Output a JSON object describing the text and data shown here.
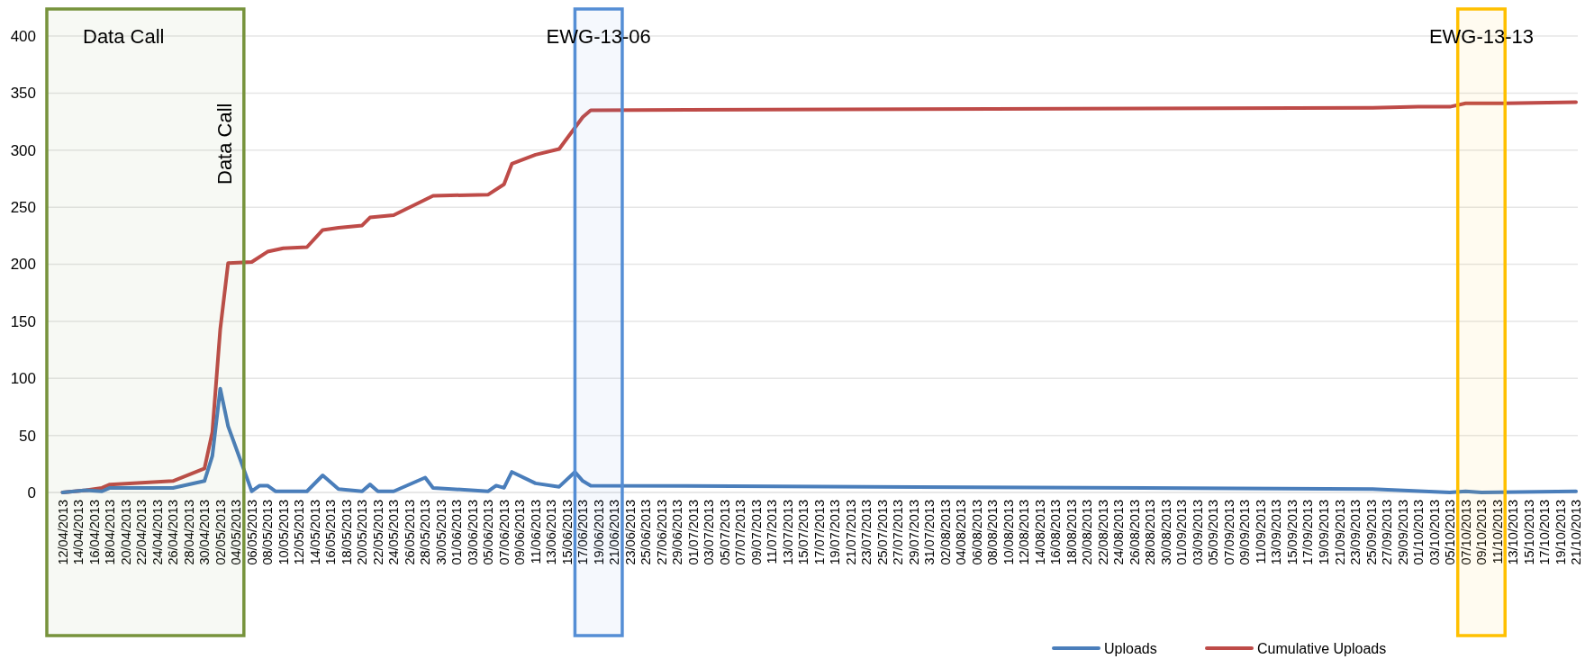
{
  "chart_data": {
    "type": "line",
    "series": [
      {
        "name": "Uploads",
        "color": "#4a7ebb",
        "x": [
          "2013-04-12",
          "2013-04-15",
          "2013-04-17",
          "2013-04-18",
          "2013-04-26",
          "2013-04-30",
          "2013-05-01",
          "2013-05-02",
          "2013-05-03",
          "2013-05-06",
          "2013-05-07",
          "2013-05-08",
          "2013-05-09",
          "2013-05-13",
          "2013-05-15",
          "2013-05-17",
          "2013-05-20",
          "2013-05-21",
          "2013-05-22",
          "2013-05-24",
          "2013-05-28",
          "2013-05-29",
          "2013-06-05",
          "2013-06-06",
          "2013-06-07",
          "2013-06-08",
          "2013-06-11",
          "2013-06-14",
          "2013-06-16",
          "2013-06-17",
          "2013-06-18",
          "2013-09-25",
          "2013-10-05",
          "2013-10-07",
          "2013-10-09",
          "2013-10-21"
        ],
        "values": [
          0,
          2,
          1,
          4,
          4,
          10,
          32,
          91,
          58,
          1,
          6,
          6,
          1,
          1,
          15,
          3,
          1,
          7,
          1,
          1,
          13,
          4,
          1,
          6,
          4,
          18,
          8,
          5,
          18,
          10,
          6,
          3,
          0,
          1,
          0,
          1
        ]
      },
      {
        "name": "Cumulative Uploads",
        "color": "#be4b48",
        "x": [
          "2013-04-12",
          "2013-04-15",
          "2013-04-17",
          "2013-04-18",
          "2013-04-26",
          "2013-04-30",
          "2013-05-01",
          "2013-05-02",
          "2013-05-03",
          "2013-05-06",
          "2013-05-08",
          "2013-05-10",
          "2013-05-13",
          "2013-05-15",
          "2013-05-17",
          "2013-05-20",
          "2013-05-21",
          "2013-05-24",
          "2013-05-29",
          "2013-06-05",
          "2013-06-07",
          "2013-06-08",
          "2013-06-11",
          "2013-06-14",
          "2013-06-17",
          "2013-06-18",
          "2013-09-25",
          "2013-10-01",
          "2013-10-05",
          "2013-10-07",
          "2013-10-12",
          "2013-10-21"
        ],
        "values": [
          0,
          2,
          4,
          7,
          10,
          21,
          53,
          143,
          201,
          202,
          211,
          214,
          215,
          230,
          232,
          234,
          241,
          243,
          260,
          261,
          270,
          288,
          296,
          301,
          329,
          335,
          337,
          338,
          338,
          341,
          341,
          342
        ]
      }
    ],
    "xlim": [
      "2013-04-10",
      "2013-10-21"
    ],
    "ylim": [
      0,
      400
    ],
    "yticks": [
      0,
      50,
      100,
      150,
      200,
      250,
      300,
      350,
      400
    ],
    "xticks": [
      {
        "value": "2013-04-12",
        "label": "12/04/2013"
      },
      {
        "value": "2013-04-14",
        "label": "14/04/2013"
      },
      {
        "value": "2013-04-16",
        "label": "16/04/2013"
      },
      {
        "value": "2013-04-18",
        "label": "18/04/2013"
      },
      {
        "value": "2013-04-20",
        "label": "20/04/2013"
      },
      {
        "value": "2013-04-22",
        "label": "22/04/2013"
      },
      {
        "value": "2013-04-24",
        "label": "24/04/2013"
      },
      {
        "value": "2013-04-26",
        "label": "26/04/2013"
      },
      {
        "value": "2013-04-28",
        "label": "28/04/2013"
      },
      {
        "value": "2013-04-30",
        "label": "30/04/2013"
      },
      {
        "value": "2013-05-02",
        "label": "02/05/2013"
      },
      {
        "value": "2013-05-04",
        "label": "04/05/2013"
      },
      {
        "value": "2013-05-06",
        "label": "06/05/2013"
      },
      {
        "value": "2013-05-08",
        "label": "08/05/2013"
      },
      {
        "value": "2013-05-10",
        "label": "10/05/2013"
      },
      {
        "value": "2013-05-12",
        "label": "12/05/2013"
      },
      {
        "value": "2013-05-14",
        "label": "14/05/2013"
      },
      {
        "value": "2013-05-16",
        "label": "16/05/2013"
      },
      {
        "value": "2013-05-18",
        "label": "18/05/2013"
      },
      {
        "value": "2013-05-20",
        "label": "20/05/2013"
      },
      {
        "value": "2013-05-22",
        "label": "22/05/2013"
      },
      {
        "value": "2013-05-24",
        "label": "24/05/2013"
      },
      {
        "value": "2013-05-26",
        "label": "26/05/2013"
      },
      {
        "value": "2013-05-28",
        "label": "28/05/2013"
      },
      {
        "value": "2013-05-30",
        "label": "30/05/2013"
      },
      {
        "value": "2013-06-01",
        "label": "01/06/2013"
      },
      {
        "value": "2013-06-03",
        "label": "03/06/2013"
      },
      {
        "value": "2013-06-05",
        "label": "05/06/2013"
      },
      {
        "value": "2013-06-07",
        "label": "07/06/2013"
      },
      {
        "value": "2013-06-09",
        "label": "09/06/2013"
      },
      {
        "value": "2013-06-11",
        "label": "11/06/2013"
      },
      {
        "value": "2013-06-13",
        "label": "13/06/2013"
      },
      {
        "value": "2013-06-15",
        "label": "15/06/2013"
      },
      {
        "value": "2013-06-17",
        "label": "17/06/2013"
      },
      {
        "value": "2013-06-19",
        "label": "19/06/2013"
      },
      {
        "value": "2013-06-21",
        "label": "21/06/2013"
      },
      {
        "value": "2013-06-23",
        "label": "23/06/2013"
      },
      {
        "value": "2013-06-25",
        "label": "25/06/2013"
      },
      {
        "value": "2013-06-27",
        "label": "27/06/2013"
      },
      {
        "value": "2013-06-29",
        "label": "29/06/2013"
      },
      {
        "value": "2013-07-01",
        "label": "01/07/2013"
      },
      {
        "value": "2013-07-03",
        "label": "03/07/2013"
      },
      {
        "value": "2013-07-05",
        "label": "05/07/2013"
      },
      {
        "value": "2013-07-07",
        "label": "07/07/2013"
      },
      {
        "value": "2013-07-09",
        "label": "09/07/2013"
      },
      {
        "value": "2013-07-11",
        "label": "11/07/2013"
      },
      {
        "value": "2013-07-13",
        "label": "13/07/2013"
      },
      {
        "value": "2013-07-15",
        "label": "15/07/2013"
      },
      {
        "value": "2013-07-17",
        "label": "17/07/2013"
      },
      {
        "value": "2013-07-19",
        "label": "19/07/2013"
      },
      {
        "value": "2013-07-21",
        "label": "21/07/2013"
      },
      {
        "value": "2013-07-23",
        "label": "23/07/2013"
      },
      {
        "value": "2013-07-25",
        "label": "25/07/2013"
      },
      {
        "value": "2013-07-27",
        "label": "27/07/2013"
      },
      {
        "value": "2013-07-29",
        "label": "29/07/2013"
      },
      {
        "value": "2013-07-31",
        "label": "31/07/2013"
      },
      {
        "value": "2013-08-02",
        "label": "02/08/2013"
      },
      {
        "value": "2013-08-04",
        "label": "04/08/2013"
      },
      {
        "value": "2013-08-06",
        "label": "06/08/2013"
      },
      {
        "value": "2013-08-08",
        "label": "08/08/2013"
      },
      {
        "value": "2013-08-10",
        "label": "10/08/2013"
      },
      {
        "value": "2013-08-12",
        "label": "12/08/2013"
      },
      {
        "value": "2013-08-14",
        "label": "14/08/2013"
      },
      {
        "value": "2013-08-16",
        "label": "16/08/2013"
      },
      {
        "value": "2013-08-18",
        "label": "18/08/2013"
      },
      {
        "value": "2013-08-20",
        "label": "20/08/2013"
      },
      {
        "value": "2013-08-22",
        "label": "22/08/2013"
      },
      {
        "value": "2013-08-24",
        "label": "24/08/2013"
      },
      {
        "value": "2013-08-26",
        "label": "26/08/2013"
      },
      {
        "value": "2013-08-28",
        "label": "28/08/2013"
      },
      {
        "value": "2013-08-30",
        "label": "30/08/2013"
      },
      {
        "value": "2013-09-01",
        "label": "01/09/2013"
      },
      {
        "value": "2013-09-03",
        "label": "03/09/2013"
      },
      {
        "value": "2013-09-05",
        "label": "05/09/2013"
      },
      {
        "value": "2013-09-07",
        "label": "07/09/2013"
      },
      {
        "value": "2013-09-09",
        "label": "09/09/2013"
      },
      {
        "value": "2013-09-11",
        "label": "11/09/2013"
      },
      {
        "value": "2013-09-13",
        "label": "13/09/2013"
      },
      {
        "value": "2013-09-15",
        "label": "15/09/2013"
      },
      {
        "value": "2013-09-17",
        "label": "17/09/2013"
      },
      {
        "value": "2013-09-19",
        "label": "19/09/2013"
      },
      {
        "value": "2013-09-21",
        "label": "21/09/2013"
      },
      {
        "value": "2013-09-23",
        "label": "23/09/2013"
      },
      {
        "value": "2013-09-25",
        "label": "25/09/2013"
      },
      {
        "value": "2013-09-27",
        "label": "27/09/2013"
      },
      {
        "value": "2013-09-29",
        "label": "29/09/2013"
      },
      {
        "value": "2013-10-01",
        "label": "01/10/2013"
      },
      {
        "value": "2013-10-03",
        "label": "03/10/2013"
      },
      {
        "value": "2013-10-05",
        "label": "05/10/2013"
      },
      {
        "value": "2013-10-07",
        "label": "07/10/2013"
      },
      {
        "value": "2013-10-09",
        "label": "09/10/2013"
      },
      {
        "value": "2013-10-11",
        "label": "11/10/2013"
      },
      {
        "value": "2013-10-13",
        "label": "13/10/2013"
      },
      {
        "value": "2013-10-15",
        "label": "15/10/2013"
      },
      {
        "value": "2013-10-17",
        "label": "17/10/2013"
      },
      {
        "value": "2013-10-19",
        "label": "19/10/2013"
      },
      {
        "value": "2013-10-21",
        "label": "21/10/2013"
      }
    ],
    "bands": [
      {
        "axis": "x",
        "from": "2013-04-10",
        "to": "2013-05-05",
        "label": "Data Call",
        "color": "#77933c"
      },
      {
        "axis": "x",
        "from": "2013-06-16",
        "to": "2013-06-22",
        "label": "EWG-13-06",
        "color": "#558ed5"
      },
      {
        "axis": "x",
        "from": "2013-10-06",
        "to": "2013-10-12",
        "label": "EWG-13-13",
        "color": "#ffc000"
      }
    ],
    "annotations": [
      "Data Call"
    ],
    "grid": "y",
    "legend": "bottom"
  }
}
